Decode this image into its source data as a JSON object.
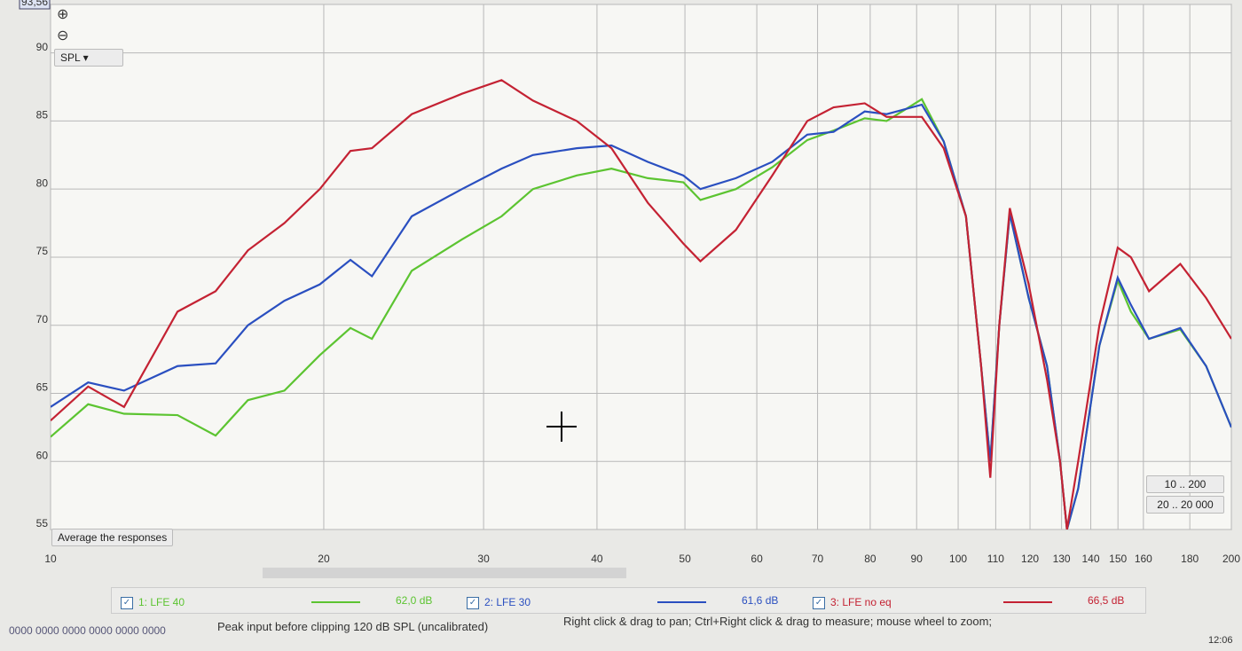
{
  "chart_data": {
    "type": "line",
    "log_x": true,
    "grid": true,
    "x": [
      10,
      11,
      12.05,
      13.8,
      15.2,
      16.5,
      18.1,
      19.8,
      21.4,
      22.6,
      25,
      28.4,
      31.4,
      34,
      38,
      41.5,
      45.5,
      49.8,
      52,
      56.9,
      62.4,
      68.2,
      72.9,
      78.9,
      83.4,
      91.2,
      96.4,
      102,
      106,
      108.5,
      111,
      114,
      119.6,
      125.3,
      129.5,
      131.8,
      135.6,
      143.1,
      149.9,
      155,
      162.3,
      175.7,
      187.6,
      200
    ],
    "series": [
      {
        "name": "1: LFE 40",
        "level": "62,0 dB",
        "color": "#5cc431",
        "values": [
          61.8,
          64.2,
          63.5,
          63.4,
          61.9,
          64.5,
          65.2,
          67.8,
          69.8,
          69,
          74,
          76.3,
          78,
          80,
          81,
          81.5,
          80.8,
          80.5,
          79.2,
          80,
          81.6,
          83.6,
          84.3,
          85.2,
          85,
          86.6,
          83.5,
          78,
          67,
          60,
          70,
          78.2,
          72,
          67,
          60,
          55,
          58,
          68.5,
          73.3,
          71,
          69,
          69.7,
          67,
          62.5
        ]
      },
      {
        "name": "2: LFE 30",
        "level": "61,6 dB",
        "color": "#2a4fc0",
        "values": [
          64,
          65.8,
          65.2,
          67,
          67.2,
          70,
          71.8,
          73,
          74.8,
          73.6,
          78,
          80,
          81.5,
          82.5,
          83,
          83.2,
          82,
          81,
          80,
          80.8,
          82,
          84,
          84.2,
          85.7,
          85.5,
          86.2,
          83.5,
          78,
          67,
          60,
          70,
          78.2,
          72,
          67,
          60,
          55,
          58,
          68.5,
          73.5,
          71.5,
          69,
          69.8,
          67,
          62.5
        ]
      },
      {
        "name": "3: LFE no eq",
        "level": "66,5 dB",
        "color": "#c42233",
        "values": [
          63,
          65.5,
          64,
          71,
          72.5,
          75.5,
          77.5,
          80,
          82.8,
          83,
          85.5,
          87,
          88,
          86.5,
          85,
          83,
          79,
          76,
          74.7,
          77,
          81,
          85,
          86,
          86.3,
          85.3,
          85.3,
          83,
          78,
          67,
          58.8,
          70,
          78.6,
          73,
          66,
          60,
          55,
          60,
          70,
          75.7,
          75,
          72.5,
          74.5,
          72,
          69
        ]
      }
    ],
    "xlim": [
      10,
      200
    ],
    "ylim": [
      55,
      93.56
    ],
    "xticks": [
      10,
      20,
      30,
      40,
      50,
      60,
      70,
      80,
      90,
      100,
      110,
      120,
      130,
      140,
      150,
      160,
      180,
      200
    ],
    "yticks": [
      55,
      60,
      65,
      70,
      75,
      80,
      85,
      90,
      {
        "value": 93.56,
        "label": "93,56"
      }
    ]
  },
  "ui": {
    "measure_select": "SPL",
    "average_button": "Average the responses",
    "range_buttons": [
      "10 .. 200",
      "20 .. 20 000"
    ],
    "status": {
      "meters": "0000 0000  0000 0000  0000 0000",
      "peak": "Peak input before clipping 120 dB SPL (uncalibrated)",
      "hint": "Right click & drag to pan; Ctrl+Right click & drag to measure; mouse wheel to zoom;"
    },
    "clock": "12:06"
  }
}
